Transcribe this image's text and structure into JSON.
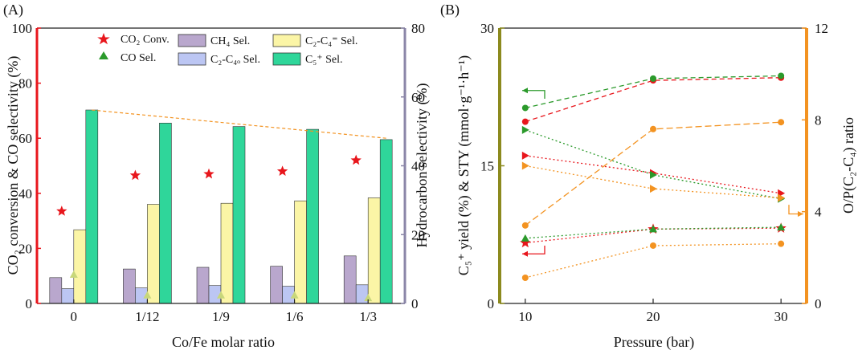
{
  "panel_a": {
    "label": "(A)",
    "legend": {
      "co2_conv": "CO₂ Conv.",
      "co_sel": "CO Sel.",
      "ch4": "CH₄ Sel.",
      "c2c4o": "C₂-C₄ₒ Sel.",
      "c2c4eq": "C₂-C₄⁼ Sel.",
      "c5": "C₅⁺ Sel."
    }
  },
  "panel_b": {
    "label": "(B)"
  },
  "colors": {
    "left_axis_a": "#e8161c",
    "right_axis_a": "#8b86a8",
    "ch4": "#b9a7cd",
    "c2c4o": "#bcc6f3",
    "c2c4eq": "#fbf5a6",
    "c5": "#2fd69a",
    "co2_marker": "#e8161c",
    "co_marker": "#2b9a2b",
    "left_axis_b": "#8c8a1e",
    "right_axis_b": "#f39321",
    "red": "#e8161c",
    "green": "#2b9a2b",
    "orange": "#f39321"
  },
  "chart_data": [
    {
      "type": "bar",
      "xlabel": "Co/Fe molar ratio",
      "ylabel": "CO₂ conversion & CO selectivity (%)",
      "y2label": "Hydrocarbon selectivity (%)",
      "categories": [
        "0",
        "1/12",
        "1/9",
        "1/6",
        "1/3"
      ],
      "ylim": [
        0,
        100
      ],
      "y2lim": [
        0,
        80
      ],
      "yticks": [
        0,
        20,
        40,
        60,
        80,
        100
      ],
      "y2ticks": [
        0,
        20,
        40,
        60,
        80
      ],
      "series": [
        {
          "name": "CH₄ Sel.",
          "axis": "right",
          "kind": "bar",
          "values": [
            7.5,
            10.0,
            10.5,
            10.8,
            13.8
          ]
        },
        {
          "name": "C₂-C₄ₒ Sel.",
          "axis": "right",
          "kind": "bar",
          "values": [
            4.3,
            4.5,
            5.2,
            5.0,
            5.4
          ]
        },
        {
          "name": "C₂-C₄⁼ Sel.",
          "axis": "right",
          "kind": "bar",
          "values": [
            21.4,
            28.8,
            29.1,
            29.8,
            30.7
          ]
        },
        {
          "name": "C₅⁺ Sel.",
          "axis": "right",
          "kind": "bar",
          "values": [
            56.2,
            52.4,
            51.4,
            50.6,
            47.6
          ]
        },
        {
          "name": "CO₂ Conv.",
          "axis": "left",
          "kind": "marker",
          "marker": "star",
          "values": [
            33.5,
            46.5,
            47.0,
            48.0,
            52.0
          ]
        },
        {
          "name": "CO Sel.",
          "axis": "left",
          "kind": "marker",
          "marker": "triangle",
          "values": [
            10.5,
            3.0,
            3.0,
            3.0,
            2.0
          ]
        }
      ],
      "trendline": {
        "axis": "right",
        "from": [
          0,
          56.2
        ],
        "to": [
          4,
          48.0
        ]
      }
    },
    {
      "type": "line",
      "xlabel": "Pressure (bar)",
      "ylabel": "C₅⁺ yield (%) & STY (mmol·g⁻¹·h⁻¹)",
      "y2label": "O/P(C₂-C₄) ratio",
      "xlim": [
        8,
        32
      ],
      "xticks": [
        10,
        20,
        30
      ],
      "ylim": [
        0,
        30
      ],
      "yticks": [
        0,
        15,
        30
      ],
      "y2lim": [
        0,
        12
      ],
      "y2ticks": [
        0,
        4,
        8,
        12
      ],
      "series": [
        {
          "color": "red",
          "axis": "left",
          "marker": "circle",
          "dash": "6,4",
          "x": [
            10,
            20,
            30
          ],
          "y": [
            19.8,
            24.3,
            24.6
          ]
        },
        {
          "color": "green",
          "axis": "left",
          "marker": "circle",
          "dash": "6,4",
          "x": [
            10,
            20,
            30
          ],
          "y": [
            21.3,
            24.5,
            24.8
          ]
        },
        {
          "color": "red",
          "axis": "left",
          "marker": "triangle-right",
          "dash": "2,3",
          "x": [
            10,
            20,
            30
          ],
          "y": [
            16.1,
            14.2,
            12.0
          ]
        },
        {
          "color": "green",
          "axis": "left",
          "marker": "triangle-right",
          "dash": "2,3",
          "x": [
            10,
            20,
            30
          ],
          "y": [
            18.9,
            14.0,
            11.4
          ]
        },
        {
          "color": "orange",
          "axis": "right",
          "marker": "triangle-right",
          "dash": "2,3",
          "x": [
            10,
            20,
            30
          ],
          "y": [
            6.0,
            5.0,
            4.6
          ]
        },
        {
          "color": "orange",
          "axis": "right",
          "marker": "circle",
          "dash": "8,4",
          "x": [
            10,
            20,
            30
          ],
          "y": [
            3.4,
            7.6,
            7.9
          ]
        },
        {
          "color": "red",
          "axis": "left",
          "marker": "star",
          "dash": "2,3",
          "x": [
            10,
            20,
            30
          ],
          "y": [
            6.6,
            8.1,
            8.2
          ]
        },
        {
          "color": "green",
          "axis": "left",
          "marker": "triangle",
          "dash": "2,3",
          "x": [
            10,
            20,
            30
          ],
          "y": [
            7.1,
            8.1,
            8.3
          ]
        },
        {
          "color": "orange",
          "axis": "left",
          "marker": "circle",
          "dash": "2,3",
          "x": [
            10,
            20,
            30
          ],
          "y": [
            2.8,
            6.3,
            6.5
          ]
        }
      ]
    }
  ]
}
